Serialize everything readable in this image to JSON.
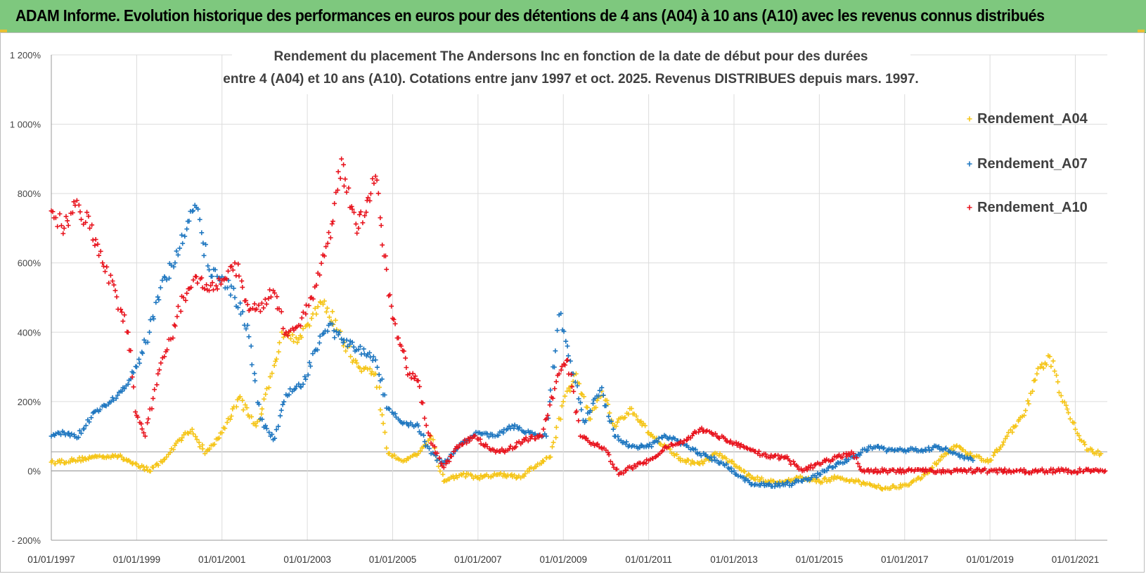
{
  "header": {
    "title": "ADAM Informe. Evolution historique des performances en euros pour des détentions de 4 ans (A04) à 10 ans (A10) avec les revenus connus distribués"
  },
  "chart_data": {
    "type": "scatter",
    "title_line1": "Rendement du placement The Andersons Inc en fonction de la date de début pour des durées",
    "title_line2": "entre 4 (A04) et 10 ans (A10).  Cotations entre janv 1997 et oct. 2025.  Revenus DISTRIBUES depuis mars. 1997.",
    "xlabel": "",
    "ylabel": "",
    "x_range": [
      "1997-01-01",
      "2021-09-30"
    ],
    "y_range": [
      -200,
      1200
    ],
    "y_ticks": [
      -200,
      0,
      200,
      400,
      600,
      800,
      1000,
      1200
    ],
    "y_tick_labels": [
      "- 200%",
      "0%",
      "200%",
      "400%",
      "600%",
      "800%",
      "1 000%",
      "1 200%"
    ],
    "x_ticks": [
      "01/01/1997",
      "01/01/1999",
      "01/01/2001",
      "01/01/2003",
      "01/01/2005",
      "01/01/2007",
      "01/01/2009",
      "01/01/2011",
      "01/01/2013",
      "01/01/2015",
      "01/01/2017",
      "01/01/2019",
      "01/01/2021"
    ],
    "grid": true,
    "marker": "+",
    "legend_position": "top-right",
    "series": [
      {
        "name": "Rendement_A04",
        "color": "#f5c518",
        "points": [
          [
            1997.0,
            25
          ],
          [
            1997.5,
            30
          ],
          [
            1998.0,
            40
          ],
          [
            1998.5,
            45
          ],
          [
            1999.0,
            20
          ],
          [
            1999.3,
            0
          ],
          [
            1999.7,
            40
          ],
          [
            2000.0,
            90
          ],
          [
            2000.3,
            120
          ],
          [
            2000.6,
            50
          ],
          [
            2001.0,
            110
          ],
          [
            2001.4,
            210
          ],
          [
            2001.8,
            130
          ],
          [
            2002.1,
            240
          ],
          [
            2002.4,
            400
          ],
          [
            2002.8,
            380
          ],
          [
            2003.1,
            440
          ],
          [
            2003.4,
            490
          ],
          [
            2003.8,
            380
          ],
          [
            2004.2,
            300
          ],
          [
            2004.6,
            280
          ],
          [
            2004.9,
            50
          ],
          [
            2005.2,
            30
          ],
          [
            2005.6,
            50
          ],
          [
            2005.9,
            100
          ],
          [
            2006.2,
            -30
          ],
          [
            2006.6,
            -10
          ],
          [
            2007.0,
            -20
          ],
          [
            2007.5,
            -10
          ],
          [
            2008.0,
            -20
          ],
          [
            2008.4,
            20
          ],
          [
            2008.7,
            40
          ],
          [
            2009.0,
            200
          ],
          [
            2009.3,
            280
          ],
          [
            2009.6,
            150
          ],
          [
            2009.9,
            230
          ],
          [
            2010.2,
            130
          ],
          [
            2010.6,
            180
          ],
          [
            2011.0,
            110
          ],
          [
            2011.4,
            70
          ],
          [
            2011.8,
            30
          ],
          [
            2012.2,
            20
          ],
          [
            2012.6,
            50
          ],
          [
            2013.0,
            20
          ],
          [
            2013.4,
            -20
          ],
          [
            2013.8,
            -30
          ],
          [
            2014.2,
            -30
          ],
          [
            2014.6,
            -20
          ],
          [
            2015.0,
            -30
          ],
          [
            2015.4,
            -20
          ],
          [
            2015.8,
            -30
          ],
          [
            2016.2,
            -40
          ],
          [
            2016.6,
            -50
          ],
          [
            2017.0,
            -40
          ],
          [
            2017.4,
            -20
          ],
          [
            2017.8,
            30
          ],
          [
            2018.2,
            70
          ],
          [
            2018.6,
            40
          ],
          [
            2019.0,
            30
          ],
          [
            2019.4,
            100
          ],
          [
            2019.8,
            160
          ],
          [
            2020.1,
            280
          ],
          [
            2020.4,
            330
          ],
          [
            2020.7,
            200
          ],
          [
            2021.0,
            120
          ],
          [
            2021.3,
            60
          ],
          [
            2021.6,
            50
          ]
        ]
      },
      {
        "name": "Rendement_A07",
        "color": "#1f77c0",
        "points": [
          [
            1997.0,
            100
          ],
          [
            1997.3,
            110
          ],
          [
            1997.6,
            95
          ],
          [
            1998.0,
            170
          ],
          [
            1998.4,
            200
          ],
          [
            1998.8,
            250
          ],
          [
            1999.0,
            300
          ],
          [
            1999.3,
            400
          ],
          [
            1999.6,
            550
          ],
          [
            1999.9,
            600
          ],
          [
            2000.2,
            720
          ],
          [
            2000.4,
            760
          ],
          [
            2000.7,
            580
          ],
          [
            2001.0,
            560
          ],
          [
            2001.3,
            500
          ],
          [
            2001.6,
            420
          ],
          [
            2001.9,
            150
          ],
          [
            2002.2,
            90
          ],
          [
            2002.5,
            220
          ],
          [
            2002.9,
            250
          ],
          [
            2003.2,
            350
          ],
          [
            2003.5,
            420
          ],
          [
            2003.8,
            380
          ],
          [
            2004.2,
            350
          ],
          [
            2004.6,
            320
          ],
          [
            2004.9,
            180
          ],
          [
            2005.2,
            140
          ],
          [
            2005.6,
            130
          ],
          [
            2005.9,
            50
          ],
          [
            2006.2,
            20
          ],
          [
            2006.6,
            80
          ],
          [
            2007.0,
            110
          ],
          [
            2007.4,
            100
          ],
          [
            2007.8,
            130
          ],
          [
            2008.2,
            110
          ],
          [
            2008.6,
            100
          ],
          [
            2008.9,
            450
          ],
          [
            2009.2,
            280
          ],
          [
            2009.5,
            140
          ],
          [
            2009.9,
            240
          ],
          [
            2010.2,
            100
          ],
          [
            2010.6,
            70
          ],
          [
            2011.0,
            70
          ],
          [
            2011.4,
            100
          ],
          [
            2011.8,
            80
          ],
          [
            2012.2,
            50
          ],
          [
            2012.6,
            30
          ],
          [
            2013.0,
            0
          ],
          [
            2013.4,
            -40
          ],
          [
            2013.8,
            -40
          ],
          [
            2014.2,
            -40
          ],
          [
            2014.6,
            -30
          ],
          [
            2015.0,
            -10
          ],
          [
            2015.4,
            20
          ],
          [
            2015.8,
            40
          ],
          [
            2016.2,
            70
          ],
          [
            2016.6,
            60
          ],
          [
            2017.0,
            60
          ],
          [
            2017.4,
            60
          ],
          [
            2017.8,
            70
          ],
          [
            2018.2,
            50
          ],
          [
            2018.6,
            30
          ]
        ]
      },
      {
        "name": "Rendement_A10",
        "color": "#e8141e",
        "points": [
          [
            1997.0,
            750
          ],
          [
            1997.3,
            700
          ],
          [
            1997.6,
            780
          ],
          [
            1997.9,
            700
          ],
          [
            1998.2,
            600
          ],
          [
            1998.5,
            520
          ],
          [
            1998.8,
            400
          ],
          [
            1999.0,
            160
          ],
          [
            1999.2,
            100
          ],
          [
            1999.5,
            280
          ],
          [
            1999.8,
            380
          ],
          [
            2000.1,
            500
          ],
          [
            2000.4,
            560
          ],
          [
            2000.7,
            520
          ],
          [
            2001.0,
            550
          ],
          [
            2001.3,
            600
          ],
          [
            2001.6,
            480
          ],
          [
            2001.9,
            460
          ],
          [
            2002.2,
            520
          ],
          [
            2002.5,
            400
          ],
          [
            2002.8,
            420
          ],
          [
            2003.1,
            500
          ],
          [
            2003.4,
            620
          ],
          [
            2003.6,
            720
          ],
          [
            2003.8,
            900
          ],
          [
            2004.0,
            760
          ],
          [
            2004.2,
            700
          ],
          [
            2004.4,
            780
          ],
          [
            2004.6,
            850
          ],
          [
            2004.8,
            620
          ],
          [
            2005.0,
            440
          ],
          [
            2005.2,
            360
          ],
          [
            2005.4,
            280
          ],
          [
            2005.6,
            260
          ],
          [
            2005.9,
            80
          ],
          [
            2006.2,
            10
          ],
          [
            2006.5,
            70
          ],
          [
            2006.9,
            100
          ],
          [
            2007.3,
            60
          ],
          [
            2007.7,
            60
          ],
          [
            2008.1,
            90
          ],
          [
            2008.5,
            100
          ],
          [
            2008.9,
            280
          ],
          [
            2009.1,
            320
          ],
          [
            2009.4,
            100
          ],
          [
            2009.7,
            80
          ],
          [
            2010.0,
            60
          ],
          [
            2010.3,
            -10
          ],
          [
            2010.6,
            10
          ],
          [
            2011.0,
            30
          ],
          [
            2011.4,
            70
          ],
          [
            2011.8,
            80
          ],
          [
            2012.2,
            120
          ],
          [
            2012.6,
            100
          ],
          [
            2013.0,
            80
          ],
          [
            2013.4,
            60
          ],
          [
            2013.8,
            40
          ],
          [
            2014.2,
            40
          ],
          [
            2014.6,
            0
          ],
          [
            2015.0,
            20
          ],
          [
            2015.4,
            40
          ],
          [
            2015.8,
            50
          ],
          [
            2016.0,
            0
          ],
          [
            2018.0,
            0
          ],
          [
            2020.0,
            0
          ],
          [
            2021.7,
            0
          ]
        ]
      }
    ]
  }
}
